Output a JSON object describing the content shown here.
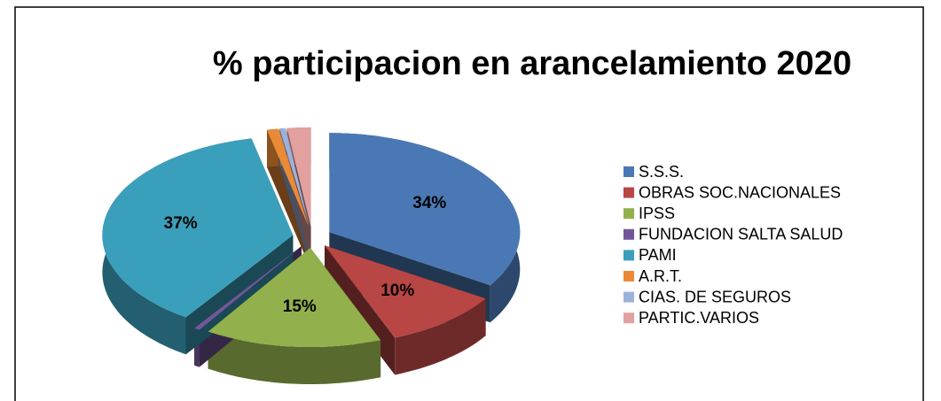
{
  "chart_data": {
    "type": "pie3d",
    "title": "% participacion en arancelamiento 2020",
    "categories": [
      "S.S.S.",
      "OBRAS SOC.NACIONALES",
      "IPSS",
      "FUNDACION SALTA SALUD",
      "PAMI",
      "A.R.T.",
      "CIAS. DE SEGUROS",
      "PARTIC.VARIOS"
    ],
    "values": [
      34,
      10,
      15,
      0.5,
      37,
      1,
      0.5,
      2
    ],
    "value_labels": [
      "34%",
      "10%",
      "15%",
      null,
      "37%",
      null,
      null,
      null
    ],
    "colors": [
      "#4a78b4",
      "#b84644",
      "#92b04c",
      "#73569a",
      "#3a9fbb",
      "#ea8a36",
      "#9cb2da",
      "#e2a09f"
    ],
    "legend": "right"
  }
}
